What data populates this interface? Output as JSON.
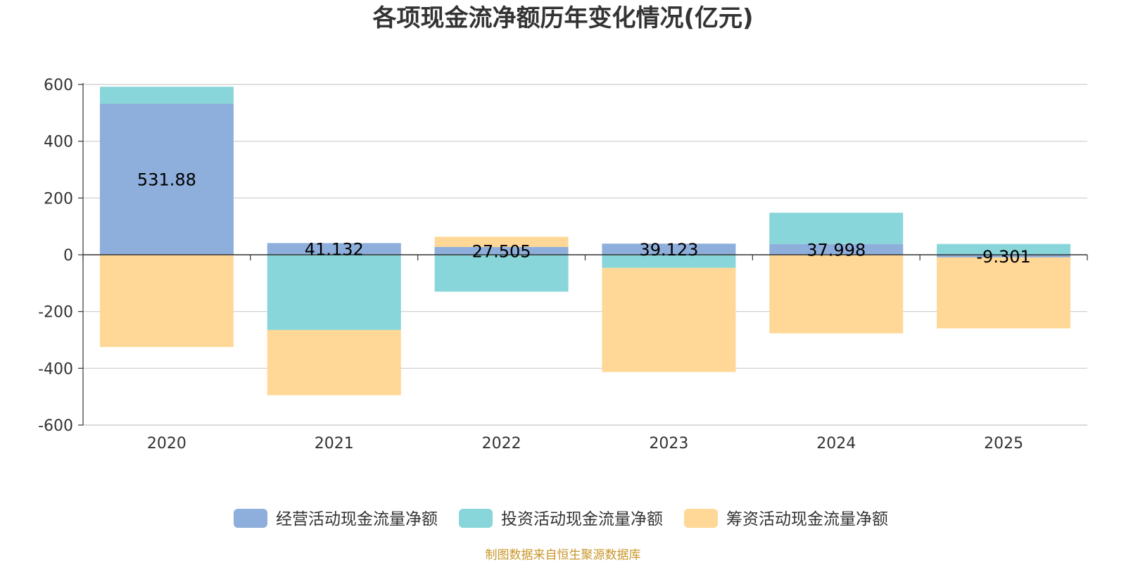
{
  "chart_data": {
    "type": "bar",
    "stacked": true,
    "title": "各项现金流净额历年变化情况(亿元)",
    "categories": [
      "2020",
      "2021",
      "2022",
      "2023",
      "2024",
      "2025"
    ],
    "ylim": [
      -600,
      600
    ],
    "yticks": [
      600,
      400,
      200,
      0,
      -200,
      -400,
      -600
    ],
    "grid": true,
    "legend_position": "bottom",
    "series": [
      {
        "name": "经营活动现金流量净额",
        "color": "#8eaedb",
        "values": [
          531.88,
          41.132,
          27.505,
          39.123,
          37.998,
          -9.3
        ],
        "labels": [
          "531.88",
          "41.132",
          "27.505",
          "39.123",
          "37.998",
          "-9.301"
        ]
      },
      {
        "name": "投资活动现金流量净额",
        "color": "#88d6d9",
        "values": [
          60,
          -265,
          -130,
          -46,
          110,
          38
        ]
      },
      {
        "name": "筹资活动现金流量净额",
        "color": "#ffd897",
        "values": [
          -325,
          -230,
          36,
          -367,
          -277,
          -250
        ]
      }
    ]
  },
  "source": "制图数据来自恒生聚源数据库"
}
